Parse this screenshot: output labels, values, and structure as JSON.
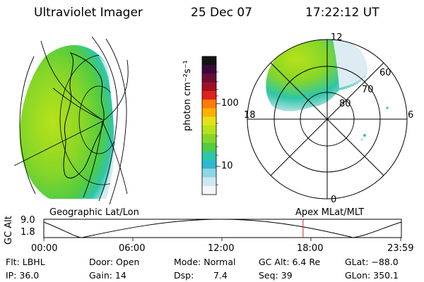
{
  "header": {
    "instrument": "Ultraviolet Imager",
    "date": "25 Dec 07",
    "time": "17:22:12 UT"
  },
  "colorbar": {
    "unit_label": "photon cm⁻²s⁻¹",
    "ticks": [
      "100",
      "10"
    ],
    "colors": [
      "#141414",
      "#3a0a3a",
      "#6b0e33",
      "#a01025",
      "#e0201a",
      "#ff7a0a",
      "#ffb000",
      "#e6e018",
      "#b8e21a",
      "#86d628",
      "#52cc40",
      "#2ec6a8",
      "#2eb8d0",
      "#8ed6e6",
      "#cfe7ee",
      "#f2f7f8"
    ]
  },
  "map_labels": {
    "left_projection": "Geographic Lat/Lon",
    "right_projection": "Apex MLat/MLT"
  },
  "polar": {
    "mlt_labels": {
      "top": "12",
      "left": "18",
      "right": "6",
      "bottom": "0"
    },
    "lat_labels": [
      "60",
      "70",
      "80"
    ]
  },
  "altitude_plot": {
    "axis_title": "GC Alt",
    "y_ticks": [
      "9.0",
      "1.8"
    ],
    "x_ticks": [
      "00:00",
      "06:00",
      "12:00",
      "18:00",
      "23:59"
    ],
    "current_time_fraction": 0.725,
    "marker_color": "#cc2222"
  },
  "status": {
    "filter": "Flt: LBHL",
    "door": "Door: Open",
    "mode": "Mode: Normal",
    "gc_alt": "GC Alt: 6.4 Re",
    "glat": "GLat: −88.0",
    "ip": "IP: 36.0",
    "gain": "Gain: 14",
    "dsp_label": "Dsp:",
    "dsp_value": "7.4",
    "seq": "Seq: 39",
    "glon": "GLon: 350.1"
  }
}
